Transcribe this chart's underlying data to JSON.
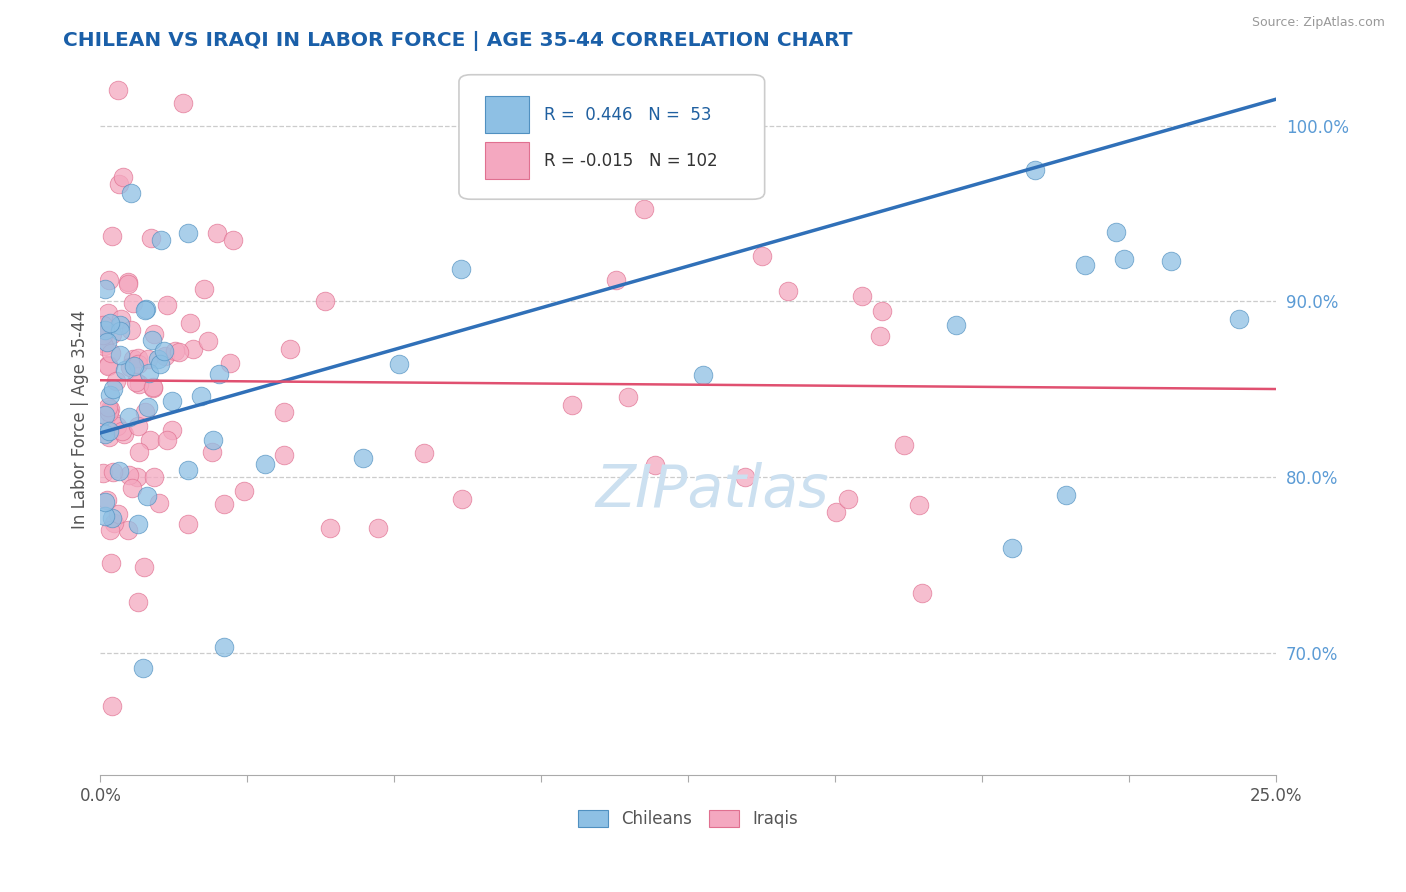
{
  "title": "CHILEAN VS IRAQI IN LABOR FORCE | AGE 35-44 CORRELATION CHART",
  "source": "Source: ZipAtlas.com",
  "xlim": [
    0.0,
    25.0
  ],
  "ylim": [
    63.0,
    103.5
  ],
  "ytick_vals": [
    70,
    80,
    90,
    100
  ],
  "xtick_positions": [
    0,
    3.125,
    6.25,
    9.375,
    12.5,
    15.625,
    18.75,
    21.875,
    25.0
  ],
  "chilean_color": "#8ec0e4",
  "chilean_edge": "#5090c0",
  "iraqi_color": "#f4a8c0",
  "iraqi_edge": "#e07090",
  "chilean_line_color": "#3070b8",
  "iraqi_line_color": "#e05070",
  "title_color": "#1a5fa8",
  "source_color": "#999999",
  "ylabel_color": "#555555",
  "ytick_color": "#5b9bd5",
  "xtick_color": "#555555",
  "watermark_color": "#cce0f0",
  "R_chilean": 0.446,
  "N_chilean": 53,
  "R_iraqi": -0.015,
  "N_iraqi": 102,
  "chilean_line_x0": 0.0,
  "chilean_line_y0": 82.5,
  "chilean_line_x1": 25.0,
  "chilean_line_y1": 101.5,
  "iraqi_line_x0": 0.0,
  "iraqi_line_y0": 85.5,
  "iraqi_line_x1": 25.0,
  "iraqi_line_y1": 85.0,
  "legend_r1": "R = 0.446",
  "legend_n1": "N = 53",
  "legend_r2": "R = -0.015",
  "legend_n2": "N = 102"
}
